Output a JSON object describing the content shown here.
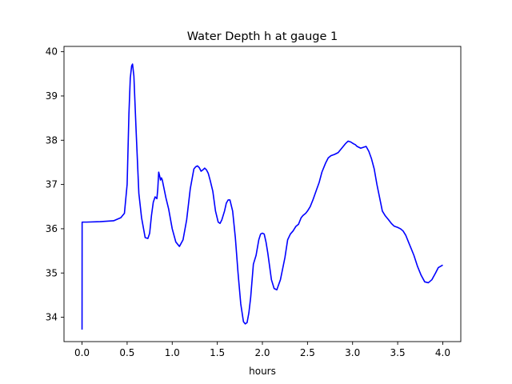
{
  "chart_data": {
    "type": "line",
    "title": "Water Depth h at gauge 1",
    "xlabel": "hours",
    "ylabel": "",
    "xlim": [
      -0.2,
      4.2
    ],
    "ylim": [
      33.45,
      40.12
    ],
    "xticks": [
      0.0,
      0.5,
      1.0,
      1.5,
      2.0,
      2.5,
      3.0,
      3.5,
      4.0
    ],
    "xtick_labels": [
      "0.0",
      "0.5",
      "1.0",
      "1.5",
      "2.0",
      "2.5",
      "3.0",
      "3.5",
      "4.0"
    ],
    "yticks": [
      34,
      35,
      36,
      37,
      38,
      39,
      40
    ],
    "ytick_labels": [
      "34",
      "35",
      "36",
      "37",
      "38",
      "39",
      "40"
    ],
    "grid": false,
    "series": [
      {
        "color": "#0000ff",
        "x": [
          0.0,
          0.001,
          0.05,
          0.2,
          0.35,
          0.43,
          0.47,
          0.5,
          0.52,
          0.535,
          0.55,
          0.56,
          0.575,
          0.6,
          0.63,
          0.66,
          0.7,
          0.73,
          0.75,
          0.77,
          0.79,
          0.81,
          0.83,
          0.84,
          0.85,
          0.86,
          0.87,
          0.88,
          0.89,
          0.91,
          0.93,
          0.96,
          1.0,
          1.04,
          1.08,
          1.12,
          1.16,
          1.2,
          1.24,
          1.26,
          1.28,
          1.3,
          1.32,
          1.34,
          1.36,
          1.38,
          1.4,
          1.42,
          1.45,
          1.48,
          1.51,
          1.53,
          1.55,
          1.58,
          1.6,
          1.62,
          1.64,
          1.67,
          1.7,
          1.73,
          1.76,
          1.79,
          1.81,
          1.83,
          1.85,
          1.87,
          1.9,
          1.93,
          1.96,
          1.98,
          2.0,
          2.02,
          2.04,
          2.06,
          2.08,
          2.1,
          2.13,
          2.16,
          2.2,
          2.22,
          2.25,
          2.28,
          2.31,
          2.34,
          2.37,
          2.4,
          2.43,
          2.45,
          2.48,
          2.5,
          2.53,
          2.56,
          2.6,
          2.63,
          2.66,
          2.7,
          2.73,
          2.76,
          2.8,
          2.84,
          2.88,
          2.92,
          2.95,
          2.98,
          3.01,
          3.03,
          3.05,
          3.07,
          3.09,
          3.12,
          3.15,
          3.18,
          3.21,
          3.24,
          3.27,
          3.3,
          3.33,
          3.36,
          3.38,
          3.4,
          3.43,
          3.46,
          3.5,
          3.53,
          3.56,
          3.59,
          3.62,
          3.65,
          3.68,
          3.72,
          3.76,
          3.8,
          3.84,
          3.88,
          3.92,
          3.95,
          4.0
        ],
        "y": [
          33.72,
          36.15,
          36.15,
          36.16,
          36.18,
          36.25,
          36.35,
          37.0,
          38.6,
          39.4,
          39.68,
          39.72,
          39.45,
          38.2,
          36.8,
          36.25,
          35.8,
          35.78,
          35.9,
          36.3,
          36.6,
          36.72,
          36.68,
          36.9,
          37.28,
          37.2,
          37.1,
          37.15,
          37.1,
          36.9,
          36.7,
          36.45,
          36.0,
          35.7,
          35.6,
          35.75,
          36.2,
          36.9,
          37.35,
          37.4,
          37.42,
          37.38,
          37.3,
          37.33,
          37.37,
          37.33,
          37.25,
          37.1,
          36.85,
          36.4,
          36.15,
          36.12,
          36.2,
          36.4,
          36.58,
          36.65,
          36.65,
          36.4,
          35.8,
          35.0,
          34.3,
          33.9,
          33.85,
          33.88,
          34.1,
          34.45,
          35.2,
          35.4,
          35.75,
          35.88,
          35.9,
          35.88,
          35.7,
          35.45,
          35.15,
          34.85,
          34.65,
          34.62,
          34.85,
          35.05,
          35.35,
          35.75,
          35.88,
          35.95,
          36.05,
          36.1,
          36.25,
          36.3,
          36.35,
          36.4,
          36.5,
          36.65,
          36.88,
          37.05,
          37.28,
          37.48,
          37.6,
          37.65,
          37.68,
          37.72,
          37.82,
          37.92,
          37.98,
          37.96,
          37.92,
          37.9,
          37.86,
          37.84,
          37.82,
          37.84,
          37.86,
          37.75,
          37.58,
          37.35,
          37.0,
          36.7,
          36.4,
          36.3,
          36.25,
          36.2,
          36.12,
          36.06,
          36.03,
          36.0,
          35.95,
          35.85,
          35.7,
          35.55,
          35.4,
          35.15,
          34.95,
          34.8,
          34.78,
          34.85,
          35.0,
          35.12,
          35.18
        ]
      }
    ]
  }
}
